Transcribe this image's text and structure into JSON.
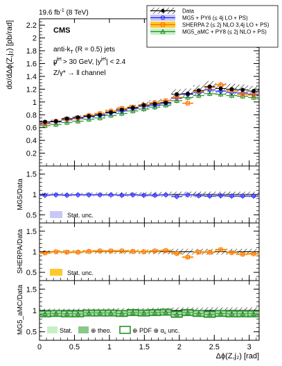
{
  "header": {
    "lumi_prefix": "19.6 fb",
    "lumi_sup": "-1",
    "lumi_suffix": " (8 TeV)"
  },
  "annotations": {
    "experiment": "CMS",
    "algo_a": "anti-k",
    "algo_a_sub": "T",
    "algo_b": " (R = 0.5) jets",
    "ptcut_p": "p",
    "ptcut_sup": "jet",
    "ptcut_sub": "T",
    "ptcut_rest": " > 30 GeV, |y",
    "ptcut_sup2": "jet",
    "ptcut_end": "| < 2.4",
    "channel": "Z/γ* → ll channel"
  },
  "legend": {
    "entries": [
      {
        "label": "Data",
        "color": "#000000",
        "marker": "dot"
      },
      {
        "label": "MG5 + PY6 (≤ 4j LO + PS)",
        "color": "#1a1aff",
        "marker": "circle"
      },
      {
        "label": "SHERPA 2 (≤ 2j NLO 3,4j LO + PS)",
        "color": "#ff6a00",
        "marker": "square"
      },
      {
        "label": "MG5_aMC + PY8 (≤ 2j NLO + PS)",
        "color": "#1c8a1c",
        "marker": "triangle"
      }
    ]
  },
  "axes": {
    "main_ylabel": "dσ/dΔϕ(Z,j₂) [pb/rad]",
    "ratio1_ylabel": "MG5/Data",
    "ratio2_ylabel": "SHERPA/Data",
    "ratio3_ylabel": "MG5_aMC/Data",
    "xlabel": "Δϕ(Z,j₂) [rad]"
  },
  "ratio_legends": {
    "p1": "Stat. unc.",
    "p2": "Stat. unc.",
    "p3_stat": "Stat.",
    "p3_theo": "⊕ theo.",
    "p3_pdf": "⊕ PDF ⊕ α",
    "p3_pdf_sub": "s",
    "p3_pdf_end": " unc."
  },
  "colors": {
    "data": "#000000",
    "mg5": "#1a1aff",
    "mg5_band": "#c8c8f5",
    "sherpa": "#ff6a00",
    "sherpa_band": "#ffc832",
    "amc": "#1c8a1c",
    "amc_stat": "#c6f0c6",
    "amc_theo": "#88c888"
  },
  "chart_data": [
    {
      "panel": "main",
      "type": "scatter",
      "x": [
        0.0785,
        0.2356,
        0.3927,
        0.5498,
        0.7069,
        0.864,
        1.0211,
        1.1781,
        1.3352,
        1.4923,
        1.6494,
        1.8065,
        1.9635,
        2.1206,
        2.2777,
        2.4348,
        2.5919,
        2.749,
        2.906,
        3.0631
      ],
      "xlim": [
        0,
        3.1416
      ],
      "ylim": [
        0,
        2.3
      ],
      "yticks": [
        0.2,
        0.4,
        0.6,
        0.8,
        1,
        1.2,
        1.4,
        1.6,
        1.8,
        2,
        2.2
      ],
      "xticks": [
        0,
        0.5,
        1,
        1.5,
        2,
        2.5,
        3
      ],
      "series": [
        {
          "name": "Data",
          "values": [
            0.69,
            0.7,
            0.74,
            0.76,
            0.78,
            0.8,
            0.84,
            0.88,
            0.91,
            0.95,
            0.97,
            0.99,
            1.12,
            1.13,
            1.18,
            1.24,
            1.21,
            1.2,
            1.19,
            1.17
          ]
        },
        {
          "name": "MG5 + PY6 (≤ 4j LO + PS)",
          "values": [
            0.67,
            0.69,
            0.72,
            0.74,
            0.77,
            0.79,
            0.83,
            0.86,
            0.9,
            0.93,
            0.95,
            0.98,
            1.06,
            1.12,
            1.15,
            1.19,
            1.17,
            1.15,
            1.14,
            1.12
          ]
        },
        {
          "name": "SHERPA 2 (≤ 2j NLO 3,4j LO + PS)",
          "values": [
            0.66,
            0.7,
            0.73,
            0.75,
            0.79,
            0.82,
            0.86,
            0.9,
            0.92,
            0.95,
            0.99,
            1.02,
            1.07,
            0.98,
            1.17,
            1.23,
            1.27,
            1.18,
            1.12,
            1.11
          ]
        },
        {
          "name": "MG5_aMC + PY8 (≤ 2j NLO + PS)",
          "values": [
            0.63,
            0.65,
            0.68,
            0.7,
            0.73,
            0.75,
            0.79,
            0.82,
            0.86,
            0.89,
            0.92,
            0.95,
            1.02,
            1.07,
            1.1,
            1.13,
            1.12,
            1.1,
            1.09,
            1.07
          ]
        }
      ]
    },
    {
      "panel": "ratio_mg5",
      "type": "scatter",
      "ylabel": "MG5/Data",
      "ylim": [
        0.3,
        1.7
      ],
      "yticks": [
        0.5,
        1,
        1.5
      ],
      "values": [
        0.98,
        0.99,
        0.98,
        0.99,
        0.99,
        0.99,
        0.99,
        0.98,
        0.99,
        0.98,
        0.98,
        0.99,
        0.95,
        0.99,
        0.97,
        0.96,
        0.97,
        0.96,
        0.96,
        0.96
      ]
    },
    {
      "panel": "ratio_sherpa",
      "type": "scatter",
      "ylabel": "SHERPA/Data",
      "ylim": [
        0.3,
        1.7
      ],
      "yticks": [
        0.5,
        1,
        1.5
      ],
      "values": [
        0.97,
        1.0,
        0.99,
        0.99,
        1.01,
        1.02,
        1.02,
        1.02,
        1.01,
        1.0,
        1.02,
        1.03,
        0.96,
        0.87,
        0.99,
        0.99,
        1.05,
        0.98,
        0.94,
        0.95
      ]
    },
    {
      "panel": "ratio_amc",
      "type": "scatter",
      "ylabel": "MG5_aMC/Data",
      "ylim": [
        0.3,
        1.7
      ],
      "yticks": [
        0.5,
        1,
        1.5
      ],
      "values": [
        0.92,
        0.93,
        0.92,
        0.92,
        0.94,
        0.94,
        0.94,
        0.93,
        0.95,
        0.94,
        0.95,
        0.96,
        0.91,
        0.95,
        0.93,
        0.91,
        0.93,
        0.92,
        0.92,
        0.92
      ]
    }
  ]
}
